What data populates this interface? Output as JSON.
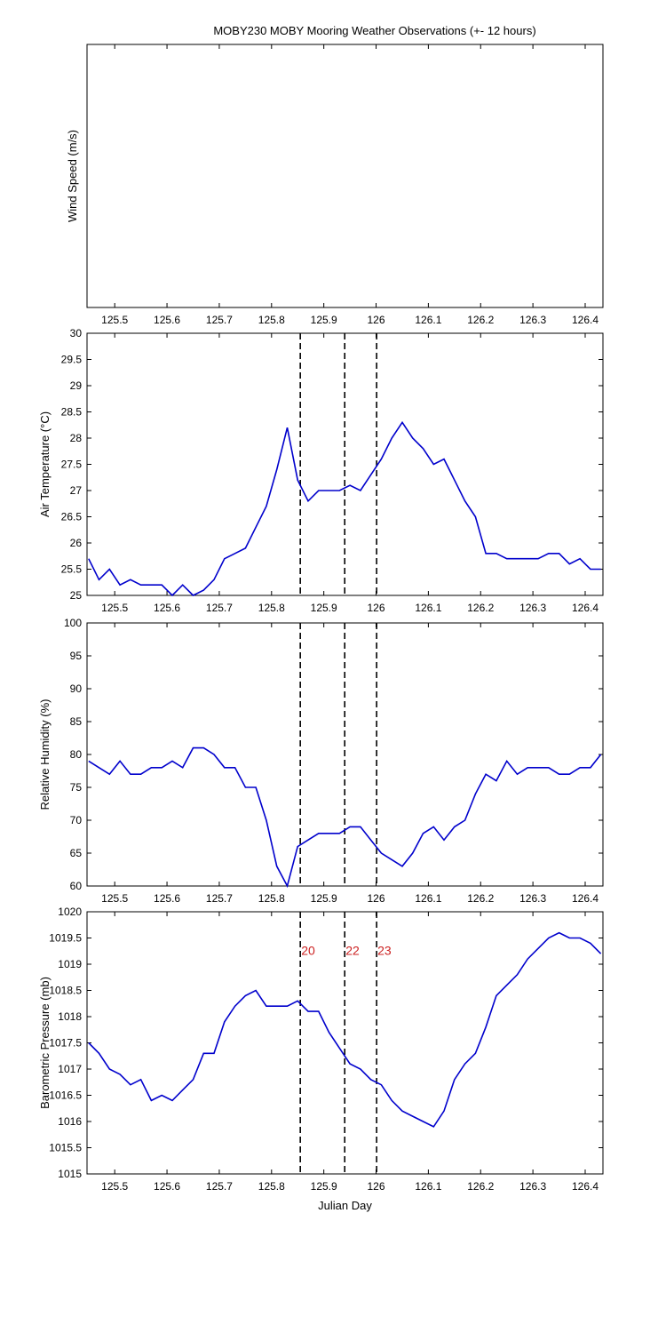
{
  "chart_data": [
    {
      "type": "line",
      "title": "MOBY230 MOBY Mooring Weather Observations (+- 12 hours)",
      "ylabel": "Wind Speed (m/s)",
      "xlim": [
        125.447,
        126.434
      ],
      "xticks": [
        125.5,
        125.6,
        125.7,
        125.8,
        125.9,
        126,
        126.1,
        126.2,
        126.3,
        126.4
      ],
      "series": []
    },
    {
      "type": "line",
      "ylabel": "Air Temperature (°C)",
      "xlim": [
        125.447,
        126.434
      ],
      "xticks": [
        125.5,
        125.6,
        125.7,
        125.8,
        125.9,
        126,
        126.1,
        126.2,
        126.3,
        126.4
      ],
      "ylim": [
        25,
        30
      ],
      "yticks": [
        25,
        25.5,
        26,
        26.5,
        27,
        27.5,
        28,
        28.5,
        29,
        29.5,
        30
      ],
      "vlines": [
        125.855,
        125.94,
        126.001
      ],
      "x": [
        125.45,
        125.47,
        125.49,
        125.51,
        125.53,
        125.55,
        125.57,
        125.59,
        125.61,
        125.63,
        125.65,
        125.67,
        125.69,
        125.71,
        125.73,
        125.75,
        125.77,
        125.79,
        125.81,
        125.83,
        125.85,
        125.87,
        125.89,
        125.91,
        125.93,
        125.95,
        125.97,
        125.99,
        126.01,
        126.03,
        126.05,
        126.07,
        126.09,
        126.11,
        126.13,
        126.15,
        126.17,
        126.19,
        126.21,
        126.23,
        126.25,
        126.27,
        126.29,
        126.31,
        126.33,
        126.35,
        126.37,
        126.39,
        126.41,
        126.43
      ],
      "series": [
        {
          "color": "#0000cc",
          "values": [
            25.7,
            25.3,
            25.5,
            25.2,
            25.3,
            25.2,
            25.2,
            25.2,
            25.0,
            25.2,
            25.0,
            25.1,
            25.3,
            25.7,
            25.8,
            25.9,
            26.3,
            26.7,
            27.4,
            28.2,
            27.2,
            26.8,
            27.0,
            27.0,
            27.0,
            27.1,
            27.0,
            27.3,
            27.6,
            28.0,
            28.3,
            28.0,
            27.8,
            27.5,
            27.6,
            27.2,
            26.8,
            26.5,
            25.8,
            25.8,
            25.7,
            25.7,
            25.7,
            25.7,
            25.8,
            25.8,
            25.6,
            25.7,
            25.5,
            25.5
          ]
        }
      ]
    },
    {
      "type": "line",
      "ylabel": "Relative Humidity (%)",
      "xlim": [
        125.447,
        126.434
      ],
      "xticks": [
        125.5,
        125.6,
        125.7,
        125.8,
        125.9,
        126,
        126.1,
        126.2,
        126.3,
        126.4
      ],
      "ylim": [
        60,
        100
      ],
      "yticks": [
        60,
        65,
        70,
        75,
        80,
        85,
        90,
        95,
        100
      ],
      "vlines": [
        125.855,
        125.94,
        126.001
      ],
      "x": [
        125.45,
        125.47,
        125.49,
        125.51,
        125.53,
        125.55,
        125.57,
        125.59,
        125.61,
        125.63,
        125.65,
        125.67,
        125.69,
        125.71,
        125.73,
        125.75,
        125.77,
        125.79,
        125.81,
        125.83,
        125.85,
        125.87,
        125.89,
        125.91,
        125.93,
        125.95,
        125.97,
        125.99,
        126.01,
        126.03,
        126.05,
        126.07,
        126.09,
        126.11,
        126.13,
        126.15,
        126.17,
        126.19,
        126.21,
        126.23,
        126.25,
        126.27,
        126.29,
        126.31,
        126.33,
        126.35,
        126.37,
        126.39,
        126.41,
        126.43
      ],
      "series": [
        {
          "color": "#0000cc",
          "values": [
            79,
            78,
            77,
            79,
            77,
            77,
            78,
            78,
            79,
            78,
            81,
            81,
            80,
            78,
            78,
            75,
            75,
            70,
            63,
            60,
            66,
            67,
            68,
            68,
            68,
            69,
            69,
            67,
            65,
            64,
            63,
            65,
            68,
            69,
            67,
            69,
            70,
            74,
            77,
            76,
            79,
            77,
            78,
            78,
            78,
            77,
            77,
            78,
            78,
            80
          ]
        }
      ]
    },
    {
      "type": "line",
      "ylabel": "Barometric Pressure (mb)",
      "xlabel": "Julian Day",
      "xlim": [
        125.447,
        126.434
      ],
      "xticks": [
        125.5,
        125.6,
        125.7,
        125.8,
        125.9,
        126,
        126.1,
        126.2,
        126.3,
        126.4
      ],
      "ylim": [
        1015,
        1020
      ],
      "yticks": [
        1015,
        1015.5,
        1016,
        1016.5,
        1017,
        1017.5,
        1018,
        1018.5,
        1019,
        1019.5,
        1020
      ],
      "vlines": [
        125.855,
        125.94,
        126.001
      ],
      "annotations": [
        {
          "x": 125.87,
          "y": 1019.25,
          "text": "20",
          "color": "#cc2222"
        },
        {
          "x": 125.955,
          "y": 1019.25,
          "text": "22",
          "color": "#cc2222"
        },
        {
          "x": 126.016,
          "y": 1019.25,
          "text": "23",
          "color": "#cc2222"
        }
      ],
      "x": [
        125.45,
        125.47,
        125.49,
        125.51,
        125.53,
        125.55,
        125.57,
        125.59,
        125.61,
        125.63,
        125.65,
        125.67,
        125.69,
        125.71,
        125.73,
        125.75,
        125.77,
        125.79,
        125.81,
        125.83,
        125.85,
        125.87,
        125.89,
        125.91,
        125.93,
        125.95,
        125.97,
        125.99,
        126.01,
        126.03,
        126.05,
        126.07,
        126.09,
        126.11,
        126.13,
        126.15,
        126.17,
        126.19,
        126.21,
        126.23,
        126.25,
        126.27,
        126.29,
        126.31,
        126.33,
        126.35,
        126.37,
        126.39,
        126.41,
        126.43
      ],
      "series": [
        {
          "color": "#0000cc",
          "values": [
            1017.5,
            1017.3,
            1017.0,
            1016.9,
            1016.7,
            1016.8,
            1016.4,
            1016.5,
            1016.4,
            1016.6,
            1016.8,
            1017.3,
            1017.3,
            1017.9,
            1018.2,
            1018.4,
            1018.5,
            1018.2,
            1018.2,
            1018.2,
            1018.3,
            1018.1,
            1018.1,
            1017.7,
            1017.4,
            1017.1,
            1017.0,
            1016.8,
            1016.7,
            1016.4,
            1016.2,
            1016.1,
            1016.0,
            1015.9,
            1016.2,
            1016.8,
            1017.1,
            1017.3,
            1017.8,
            1018.4,
            1018.6,
            1018.8,
            1019.1,
            1019.3,
            1019.5,
            1019.6,
            1019.5,
            1019.5,
            1019.4,
            1019.2
          ]
        }
      ]
    }
  ]
}
